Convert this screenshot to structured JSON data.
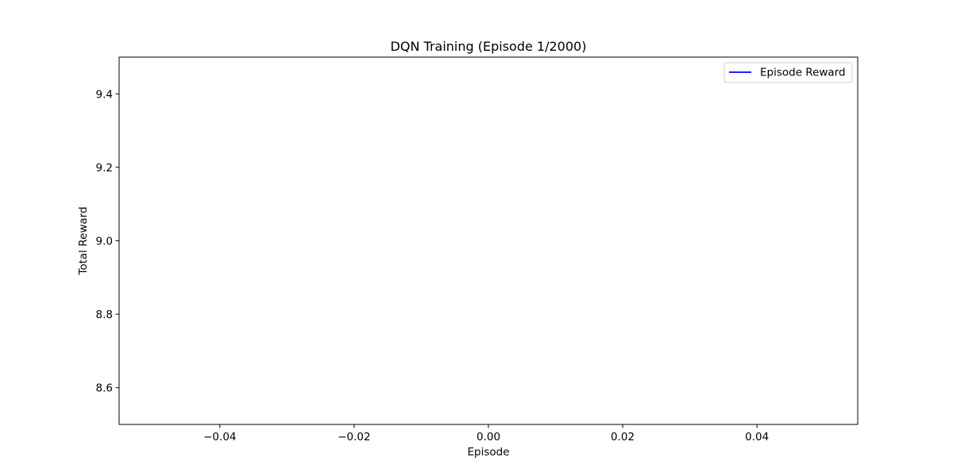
{
  "chart_data": {
    "type": "line",
    "title": "DQN Training (Episode 1/2000)",
    "xlabel": "Episode",
    "ylabel": "Total Reward",
    "xlim": [
      -0.055,
      0.055
    ],
    "ylim": [
      8.5,
      9.5
    ],
    "xticks": [
      -0.04,
      -0.02,
      0.0,
      0.02,
      0.04
    ],
    "xtick_labels": [
      "−0.04",
      "−0.02",
      "0.00",
      "0.02",
      "0.04"
    ],
    "yticks": [
      8.6,
      8.8,
      9.0,
      9.2,
      9.4
    ],
    "ytick_labels": [
      "8.6",
      "8.8",
      "9.0",
      "9.2",
      "9.4"
    ],
    "grid": false,
    "legend_position": "upper right",
    "series": [
      {
        "name": "Episode Reward",
        "color": "#0000ff",
        "x": [
          0
        ],
        "y": [
          9
        ]
      }
    ]
  }
}
